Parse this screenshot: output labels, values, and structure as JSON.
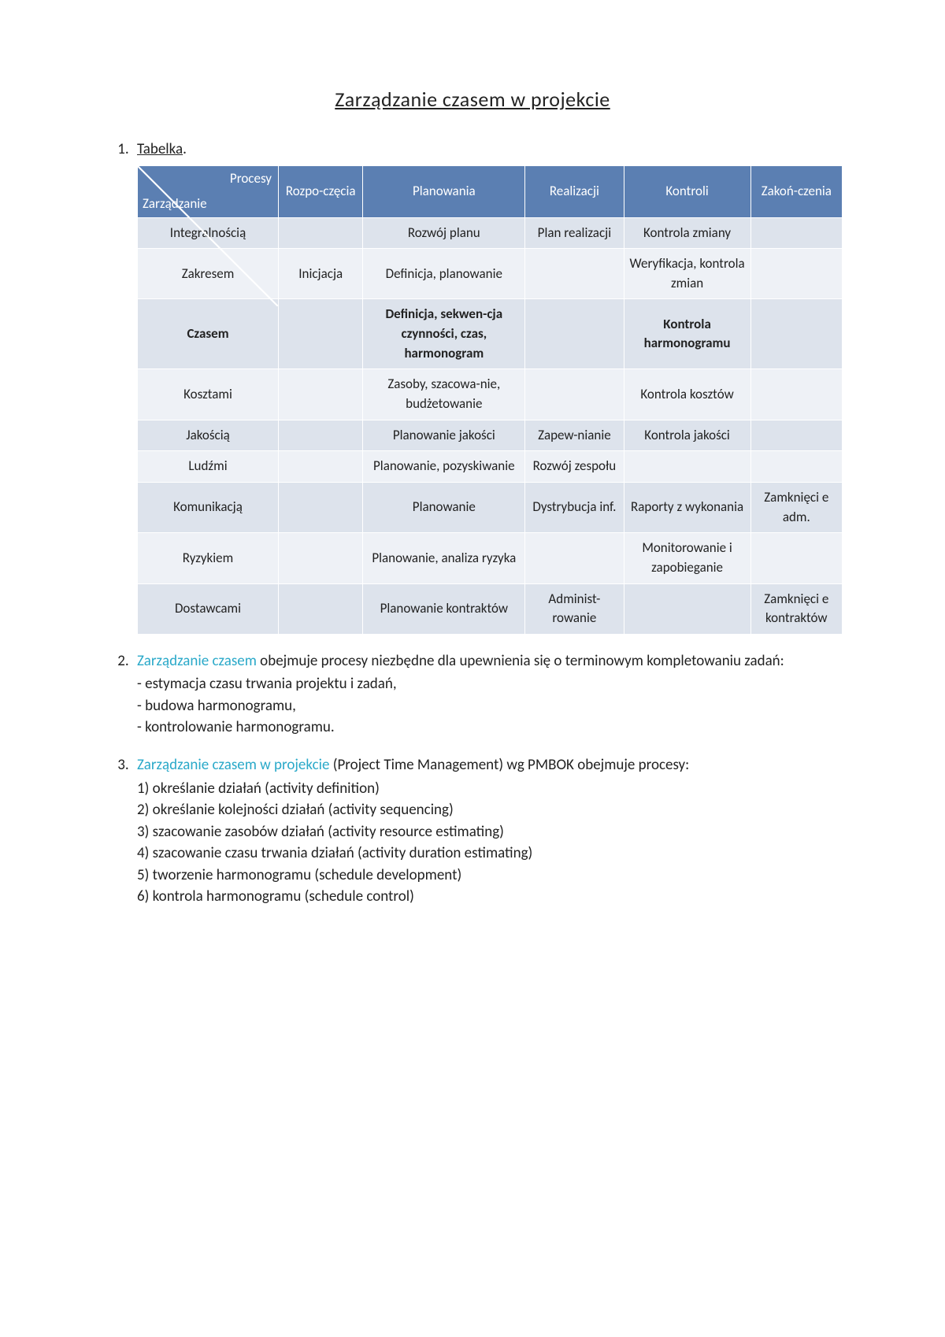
{
  "colors": {
    "header_bg": "#5b7fb2",
    "header_text": "#ffffff",
    "band_a": "#dde3ec",
    "band_b": "#eef1f6",
    "accent": "#2aa9c9",
    "text": "#222222",
    "page_bg": "#ffffff",
    "cell_border": "#ffffff"
  },
  "title": "Zarządzanie czasem w projekcie",
  "item1_label": "Tabelka",
  "table": {
    "diag_top": "Procesy",
    "diag_bottom": "Zarządzanie",
    "columns": [
      "Rozpo-częcia",
      "Planowania",
      "Realizacji",
      "Kontroli",
      "Zakoń-czenia"
    ],
    "col_widths_pct": [
      20,
      12,
      23,
      14,
      18,
      13
    ],
    "rows": [
      {
        "head": "Integralnością",
        "cells": [
          "",
          "Rozwój planu",
          "Plan realizacji",
          "Kontrola zmiany",
          ""
        ],
        "bold": false
      },
      {
        "head": "Zakresem",
        "cells": [
          "Inicjacja",
          "Definicja, planowanie",
          "",
          "Weryfikacja, kontrola zmian",
          ""
        ],
        "bold": false
      },
      {
        "head": "Czasem",
        "cells": [
          "",
          "Definicja, sekwen-cja czynności, czas, harmonogram",
          "",
          "Kontrola harmonogramu",
          ""
        ],
        "bold": true
      },
      {
        "head": "Kosztami",
        "cells": [
          "",
          "Zasoby, szacowa-nie, budżetowanie",
          "",
          "Kontrola kosztów",
          ""
        ],
        "bold": false
      },
      {
        "head": "Jakością",
        "cells": [
          "",
          "Planowanie jakości",
          "Zapew-nianie",
          "Kontrola jakości",
          ""
        ],
        "bold": false
      },
      {
        "head": "Ludźmi",
        "cells": [
          "",
          "Planowanie, pozyskiwanie",
          "Rozwój zespołu",
          "",
          ""
        ],
        "bold": false
      },
      {
        "head": "Komunikacją",
        "cells": [
          "",
          "Planowanie",
          "Dystrybucja inf.",
          "Raporty z wykonania",
          "Zamknięci e adm."
        ],
        "bold": false
      },
      {
        "head": "Ryzykiem",
        "cells": [
          "",
          "Planowanie, analiza ryzyka",
          "",
          "Monitorowanie i zapobieganie",
          ""
        ],
        "bold": false
      },
      {
        "head": "Dostawcami",
        "cells": [
          "",
          "Planowanie kontraktów",
          "Administ-rowanie",
          "",
          "Zamknięci e kontraktów"
        ],
        "bold": false
      }
    ]
  },
  "item2": {
    "lead_accent": "Zarządzanie czasem",
    "lead_rest": " obejmuje procesy niezbędne dla upewnienia się o terminowym kompletowaniu zadań:",
    "bullets": [
      "- estymacja czasu trwania projektu i zadań,",
      "- budowa harmonogramu,",
      "- kontrolowanie harmonogramu."
    ]
  },
  "item3": {
    "lead_accent": "Zarządzanie czasem w projekcie",
    "lead_rest": " (Project Time Management) wg PMBOK obejmuje procesy:",
    "points": [
      "1) określanie działań (activity definition)",
      "2) określanie kolejności działań (activity sequencing)",
      "3) szacowanie zasobów działań (activity resource estimating)",
      "4) szacowanie czasu trwania działań (activity duration estimating)",
      "5) tworzenie harmonogramu (schedule development)",
      "6) kontrola harmonogramu (schedule control)"
    ]
  }
}
